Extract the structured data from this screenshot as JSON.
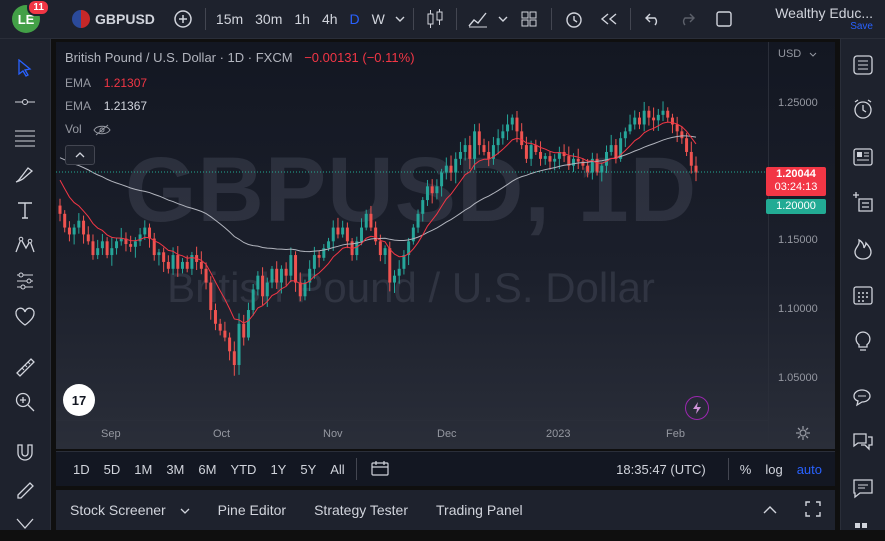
{
  "topbar": {
    "avatar_initials": "LE",
    "notifications": "11",
    "symbol": "GBPUSD",
    "intervals": [
      "15m",
      "30m",
      "1h",
      "4h",
      "D",
      "W"
    ],
    "active_interval": "D",
    "account_name": "Wealthy Educ...",
    "save_label": "Save"
  },
  "legend": {
    "title": "British Pound / U.S. Dollar · 1D · FXCM",
    "change": "−0.00131 (−0.11%)",
    "ema1_label": "EMA",
    "ema1_value": "1.21307",
    "ema2_label": "EMA",
    "ema2_value": "1.21367",
    "vol_label": "Vol"
  },
  "watermark": {
    "symbol": "GBPUSD, 1D",
    "name": "British Pound / U.S. Dollar"
  },
  "axis": {
    "currency": "USD",
    "price_tag": "1.20044",
    "countdown": "03:24:13",
    "level_tag": "1.20000"
  },
  "timebar": {
    "ranges": [
      "1D",
      "5D",
      "1M",
      "3M",
      "6M",
      "YTD",
      "1Y",
      "5Y",
      "All"
    ],
    "clock": "18:35:47 (UTC)",
    "percent": "%",
    "log": "log",
    "auto": "auto"
  },
  "bottombar": {
    "items": [
      "Stock Screener",
      "Pine Editor",
      "Strategy Tester",
      "Trading Panel"
    ]
  },
  "colors": {
    "up": "#26a69a",
    "down": "#ef5350",
    "ema_fast": "#f23645",
    "ema_slow": "#b2b5be",
    "accent": "#2962ff",
    "price_line": "#22ab94"
  },
  "chart_data": {
    "type": "candlestick",
    "symbol": "GBPUSD",
    "timeframe": "1D",
    "x_ticks": [
      "Sep",
      "Oct",
      "Nov",
      "Dec",
      "2023",
      "Feb"
    ],
    "y_ticks": [
      "1.25000",
      "1.20000",
      "1.15000",
      "1.10000",
      "1.05000"
    ],
    "ylim": [
      1.02,
      1.295
    ],
    "last_price": 1.20044,
    "close_path": [
      1.17,
      1.16,
      1.155,
      1.16,
      1.165,
      1.155,
      1.15,
      1.14,
      1.145,
      1.15,
      1.14,
      1.145,
      1.15,
      1.152,
      1.148,
      1.146,
      1.15,
      1.155,
      1.16,
      1.152,
      1.14,
      1.142,
      1.135,
      1.13,
      1.14,
      1.13,
      1.135,
      1.13,
      1.14,
      1.135,
      1.13,
      1.12,
      1.1,
      1.09,
      1.085,
      1.08,
      1.07,
      1.06,
      1.09,
      1.08,
      1.1,
      1.115,
      1.125,
      1.11,
      1.12,
      1.13,
      1.12,
      1.13,
      1.125,
      1.14,
      1.12,
      1.11,
      1.12,
      1.13,
      1.14,
      1.138,
      1.145,
      1.15,
      1.16,
      1.155,
      1.16,
      1.15,
      1.14,
      1.15,
      1.16,
      1.17,
      1.16,
      1.15,
      1.14,
      1.145,
      1.12,
      1.125,
      1.13,
      1.14,
      1.15,
      1.16,
      1.17,
      1.18,
      1.19,
      1.185,
      1.19,
      1.2,
      1.205,
      1.2,
      1.21,
      1.215,
      1.22,
      1.21,
      1.23,
      1.22,
      1.215,
      1.21,
      1.22,
      1.225,
      1.23,
      1.235,
      1.24,
      1.23,
      1.22,
      1.21,
      1.22,
      1.215,
      1.21,
      1.212,
      1.208,
      1.21,
      1.215,
      1.212,
      1.205,
      1.21,
      1.208,
      1.205,
      1.2,
      1.21,
      1.2,
      1.205,
      1.215,
      1.22,
      1.21,
      1.225,
      1.23,
      1.235,
      1.24,
      1.235,
      1.245,
      1.24,
      1.238,
      1.242,
      1.245,
      1.24,
      1.235,
      1.23,
      1.225,
      1.215,
      1.205,
      1.2
    ]
  }
}
